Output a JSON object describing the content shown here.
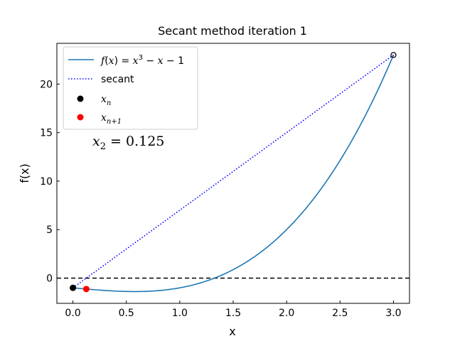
{
  "chart_data": {
    "type": "line",
    "title": "Secant method iteration 1",
    "xlabel": "x",
    "ylabel": "f(x)",
    "xlim": [
      -0.15,
      3.15
    ],
    "ylim": [
      -2.6,
      24.2
    ],
    "xticks": [
      0.0,
      0.5,
      1.0,
      1.5,
      2.0,
      2.5,
      3.0
    ],
    "xtick_labels": [
      "0.0",
      "0.5",
      "1.0",
      "1.5",
      "2.0",
      "2.5",
      "3.0"
    ],
    "yticks": [
      0,
      5,
      10,
      15,
      20
    ],
    "ytick_labels": [
      "0",
      "5",
      "10",
      "15",
      "20"
    ],
    "grid": false,
    "legend_position": "top-left",
    "zero_line": {
      "y": 0,
      "style": "dashed",
      "color": "#000000"
    },
    "series": [
      {
        "name": "f(x) = x³ − x − 1",
        "type": "line",
        "color": "#1f77b4",
        "x": [
          0.0,
          0.25,
          0.5,
          0.577,
          0.75,
          1.0,
          1.25,
          1.3247,
          1.5,
          1.75,
          2.0,
          2.25,
          2.5,
          2.75,
          3.0
        ],
        "y": [
          -1.0,
          -1.234,
          -1.375,
          -1.385,
          -1.328,
          -1.0,
          -0.297,
          0.0,
          0.875,
          2.609,
          5.0,
          8.141,
          12.125,
          17.047,
          23.0
        ]
      },
      {
        "name": "secant",
        "type": "line",
        "style": "dotted",
        "color": "#0000ff",
        "x": [
          0.0,
          3.0
        ],
        "y": [
          -1.0,
          23.0
        ]
      },
      {
        "name": "x_n",
        "type": "scatter",
        "color": "#000000",
        "x": [
          0.0
        ],
        "y": [
          -1.0
        ]
      },
      {
        "name": "x_{n+1}",
        "type": "scatter",
        "color": "#ff0000",
        "x": [
          0.125
        ],
        "y": [
          -1.123
        ]
      }
    ],
    "open_marker": {
      "x": 3.0,
      "y": 23.0,
      "color": "#000000"
    },
    "annotation": "x₂ = 0.125"
  }
}
